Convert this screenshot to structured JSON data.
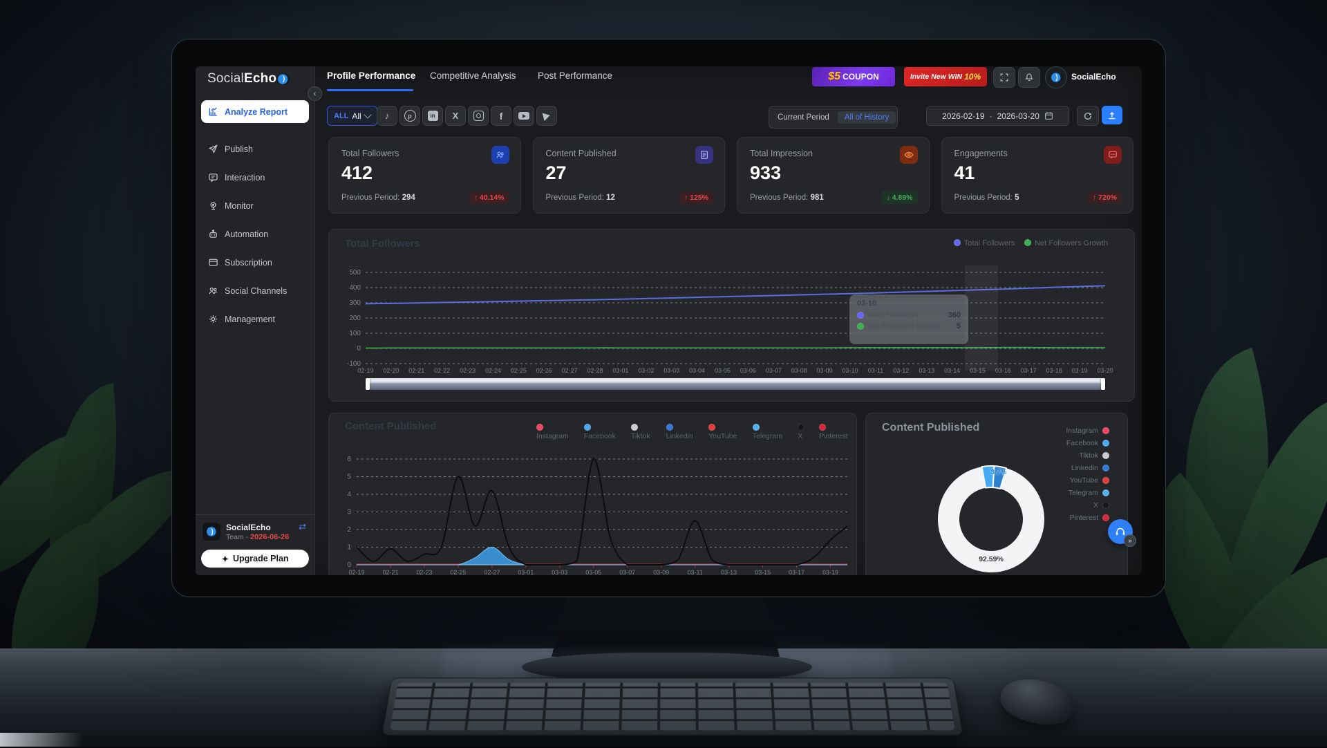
{
  "sidebar": {
    "logo_social": "Social",
    "logo_echo": "Echo",
    "collapse_glyph": "‹",
    "items": [
      {
        "label": "Analyze Report"
      },
      {
        "label": "Publish"
      },
      {
        "label": "Interaction"
      },
      {
        "label": "Monitor"
      },
      {
        "label": "Automation"
      },
      {
        "label": "Subscription"
      },
      {
        "label": "Social Channels"
      },
      {
        "label": "Management"
      }
    ],
    "team": {
      "name": "SocialEcho",
      "type_label": "Team -",
      "expiry": "2026-06-26"
    },
    "upgrade_label": "Upgrade Plan",
    "upgrade_icon": "✦",
    "swap_icon": "⇄"
  },
  "header": {
    "tabs": [
      "Profile Performance",
      "Competitive Analysis",
      "Post Performance"
    ],
    "coupon": {
      "amount": "$5",
      "text": "COUPON"
    },
    "invite": {
      "text": "Invite New WIN",
      "pct": "10%"
    },
    "account_name": "SocialEcho"
  },
  "filters": {
    "select_prefix": "ALL",
    "select_value": "All",
    "period_options": [
      "Current Period",
      "All of History"
    ],
    "selected_period": "All of History",
    "date_start": "2026-02-19",
    "date_sep": "-",
    "date_end": "2026-03-20"
  },
  "stats": [
    {
      "title": "Total Followers",
      "value": "412",
      "prev_label": "Previous Period:",
      "prev": "294",
      "arrow": "↑",
      "delta": "40.14%"
    },
    {
      "title": "Content Published",
      "value": "27",
      "prev_label": "Previous Period:",
      "prev": "12",
      "arrow": "↑",
      "delta": "125%"
    },
    {
      "title": "Total Impression",
      "value": "933",
      "prev_label": "Previous Period:",
      "prev": "981",
      "arrow": "↓",
      "delta": "4.89%"
    },
    {
      "title": "Engagements",
      "value": "41",
      "prev_label": "Previous Period:",
      "prev": "5",
      "arrow": "↑",
      "delta": "720%"
    }
  ],
  "platforms": [
    {
      "name": "Instagram",
      "color": "#ef4667"
    },
    {
      "name": "Facebook",
      "color": "#4aa7f0"
    },
    {
      "name": "Tiktok",
      "color": "#c9cdd2"
    },
    {
      "name": "Linkedin",
      "color": "#3577d4"
    },
    {
      "name": "YouTube",
      "color": "#e23b3b"
    },
    {
      "name": "Telegram",
      "color": "#54b0ea"
    },
    {
      "name": "X",
      "color": "#14161a"
    },
    {
      "name": "Pinterest",
      "color": "#d6283c"
    }
  ],
  "followers_panel": {
    "title": "Total Followers",
    "legend": [
      {
        "label": "Total Followers",
        "color": "#6366f1"
      },
      {
        "label": "Net Followers Growth",
        "color": "#3fae52"
      }
    ],
    "tooltip": {
      "date": "03-10",
      "rows": [
        {
          "label": "Total Followers",
          "value": "360",
          "color": "#6366f1"
        },
        {
          "label": "Net Followers Growth",
          "value": "5",
          "color": "#3fae52"
        }
      ]
    }
  },
  "content_panel": {
    "title": "Content Published"
  },
  "donut_panel": {
    "title": "Content Published",
    "center_label": "92.59%",
    "slice_label": "3.7%"
  },
  "chart_data": [
    {
      "type": "line",
      "title": "Total Followers",
      "x": [
        "02-19",
        "02-20",
        "02-21",
        "02-22",
        "02-23",
        "02-24",
        "02-25",
        "02-26",
        "02-27",
        "02-28",
        "03-01",
        "03-02",
        "03-03",
        "03-04",
        "03-05",
        "03-06",
        "03-07",
        "03-08",
        "03-09",
        "03-10",
        "03-11",
        "03-12",
        "03-13",
        "03-14",
        "03-15",
        "03-16",
        "03-17",
        "03-18",
        "03-19",
        "03-20"
      ],
      "ylim": [
        -100,
        500
      ],
      "yticks": [
        500,
        400,
        300,
        200,
        100,
        0,
        -100
      ],
      "grid": true,
      "legend_position": "top-right",
      "series": [
        {
          "name": "Total Followers",
          "color": "#5b6be0",
          "values": [
            294,
            296,
            299,
            302,
            305,
            308,
            311,
            314,
            317,
            320,
            324,
            328,
            332,
            336,
            340,
            344,
            348,
            352,
            356,
            360,
            365,
            370,
            375,
            380,
            385,
            390,
            396,
            402,
            407,
            412
          ]
        },
        {
          "name": "Net Followers Growth",
          "color": "#3fae52",
          "values": [
            2,
            3,
            3,
            3,
            3,
            3,
            3,
            3,
            3,
            4,
            4,
            4,
            4,
            4,
            4,
            4,
            4,
            4,
            4,
            5,
            5,
            5,
            5,
            5,
            5,
            6,
            6,
            5,
            5,
            5
          ]
        }
      ]
    },
    {
      "type": "line",
      "title": "Content Published",
      "x": [
        "02-19",
        "02-20",
        "02-21",
        "02-22",
        "02-23",
        "02-24",
        "02-25",
        "02-26",
        "02-27",
        "02-28",
        "03-01",
        "03-02",
        "03-03",
        "03-04",
        "03-05",
        "03-06",
        "03-07",
        "03-08",
        "03-09",
        "03-10",
        "03-11",
        "03-12",
        "03-13",
        "03-14",
        "03-15",
        "03-16",
        "03-17",
        "03-18",
        "03-19",
        "03-20"
      ],
      "xtick_every": 2,
      "ylim": [
        0,
        6
      ],
      "yticks": [
        6,
        5,
        4,
        3,
        2,
        1,
        0
      ],
      "grid": true,
      "legend_position": "top",
      "series": [
        {
          "name": "Instagram",
          "color": "#c03540",
          "flat": 0
        },
        {
          "name": "Facebook",
          "color": "#3d9ae0",
          "fill": true,
          "values": [
            0,
            0,
            0,
            0,
            0,
            0,
            0,
            0.4,
            1,
            0.3,
            0,
            0,
            0,
            0,
            0,
            0,
            0,
            0,
            0,
            0,
            0,
            0,
            0,
            0,
            0,
            0,
            0,
            0,
            0,
            0
          ]
        },
        {
          "name": "Tiktok",
          "color": "#c9cdd2",
          "flat": 0
        },
        {
          "name": "Linkedin",
          "color": "#3577d4",
          "flat": 0
        },
        {
          "name": "YouTube",
          "color": "#e23b3b",
          "flat": 0
        },
        {
          "name": "Telegram",
          "color": "#54b0ea",
          "flat": 0
        },
        {
          "name": "X",
          "color": "#0b0d10",
          "values": [
            1,
            0.2,
            0.9,
            0.2,
            0.6,
            1,
            5,
            2.2,
            4.2,
            1,
            0,
            0,
            0,
            0.2,
            6,
            1.5,
            0,
            0,
            0,
            0.3,
            2.5,
            0.3,
            0,
            0,
            0,
            0,
            0,
            0.4,
            1.4,
            2.2
          ]
        },
        {
          "name": "Pinterest",
          "color": "#d6283c",
          "flat": 0
        }
      ]
    },
    {
      "type": "pie",
      "title": "Content Published",
      "slices": [
        {
          "name": "Facebook",
          "value": 3.7,
          "color": "#45aaf2"
        },
        {
          "name": "Linkedin",
          "value": 3.7,
          "color": "#2c80cf"
        },
        {
          "name": "Tiktok",
          "value": 92.59,
          "color": "#f3f4f6"
        }
      ],
      "labels": {
        "slice": "3.7%",
        "main": "92.59%"
      },
      "legend": [
        "Instagram",
        "Facebook",
        "Tiktok",
        "Linkedin",
        "YouTube",
        "Telegram",
        "X",
        "Pinterest"
      ]
    }
  ]
}
